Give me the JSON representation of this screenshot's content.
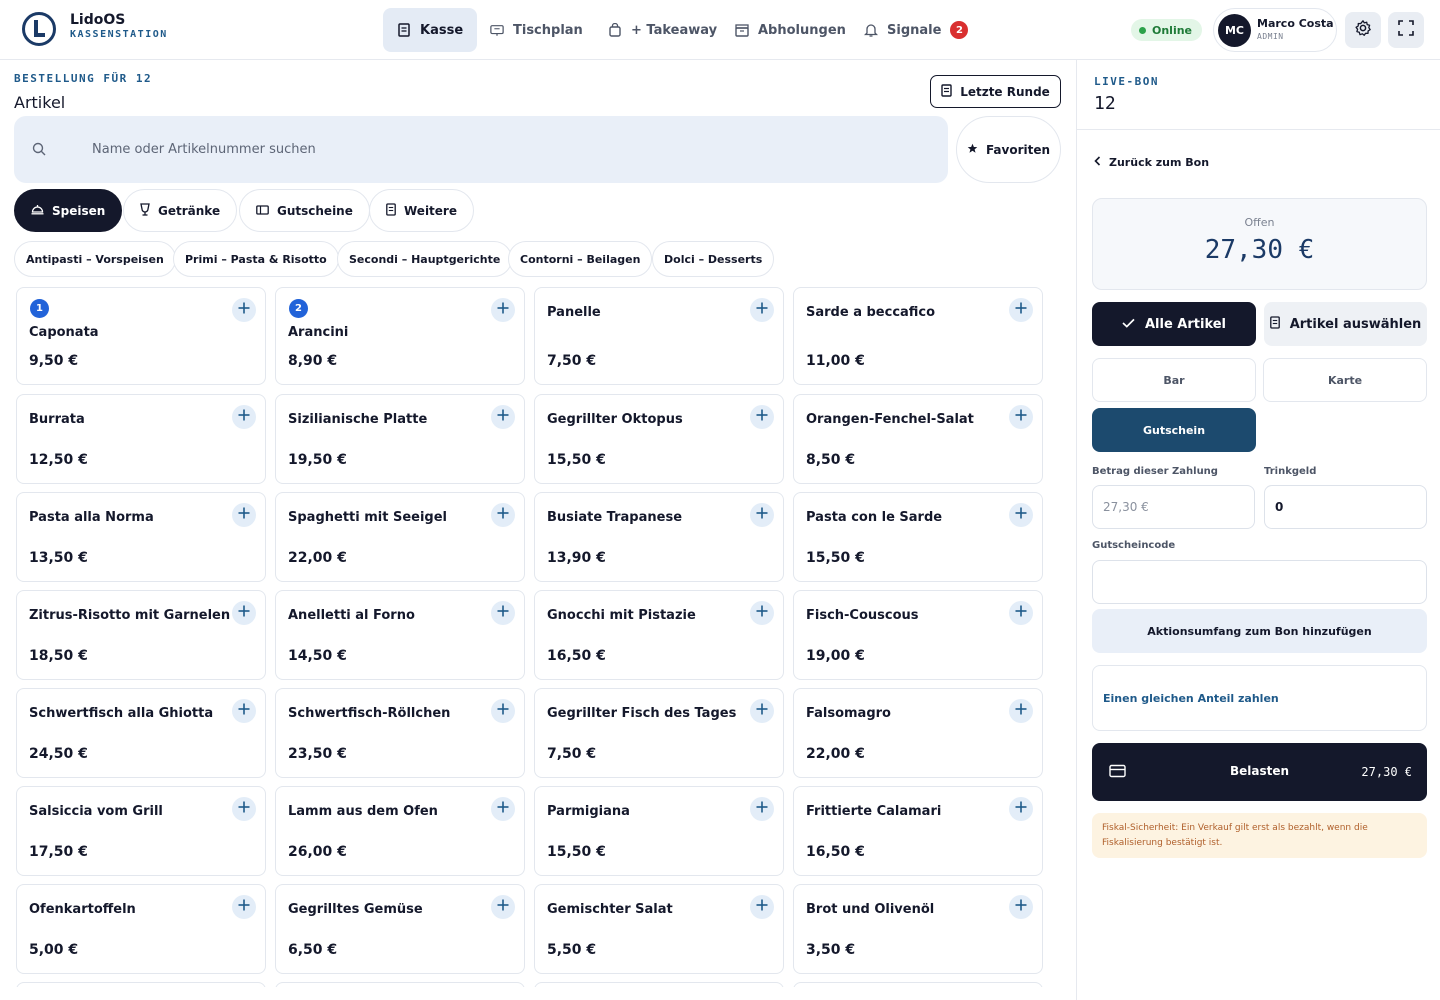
{
  "brand": {
    "name": "LidoOS",
    "subtitle": "KASSENSTATION"
  },
  "nav": [
    {
      "label": "Kasse",
      "icon": "receipt-icon",
      "active": true
    },
    {
      "label": "Tischplan",
      "icon": "table-icon"
    },
    {
      "label": "+ Takeaway",
      "icon": "bag-icon"
    },
    {
      "label": "Abholungen",
      "icon": "box-icon"
    },
    {
      "label": "Signale",
      "icon": "bell-icon",
      "badge": "2"
    }
  ],
  "status": {
    "label": "Online"
  },
  "user": {
    "initials": "MC",
    "name": "Marco Costa",
    "role": "ADMIN"
  },
  "order": {
    "label": "BESTELLUNG FÜR 12",
    "section": "Artikel",
    "last_round": "Letzte Runde",
    "search_placeholder": "Name oder Artikelnummer suchen",
    "favorites": "Favoriten"
  },
  "categories": [
    {
      "label": "Speisen",
      "icon": "dish-icon",
      "active": true
    },
    {
      "label": "Getränke",
      "icon": "glass-icon"
    },
    {
      "label": "Gutscheine",
      "icon": "ticket-icon"
    },
    {
      "label": "Weitere",
      "icon": "receipt-icon"
    }
  ],
  "subcategories": [
    "Antipasti – Vorspeisen",
    "Primi – Pasta & Risotto",
    "Secondi – Hauptgerichte",
    "Contorni – Beilagen",
    "Dolci – Desserts"
  ],
  "products": [
    {
      "name": "Caponata",
      "price": "9,50 €",
      "count": "1"
    },
    {
      "name": "Arancini",
      "price": "8,90 €",
      "count": "2"
    },
    {
      "name": "Panelle",
      "price": "7,50 €"
    },
    {
      "name": "Sarde a beccafico",
      "price": "11,00 €"
    },
    {
      "name": "Burrata",
      "price": "12,50 €"
    },
    {
      "name": "Sizilianische Platte",
      "price": "19,50 €"
    },
    {
      "name": "Gegrillter Oktopus",
      "price": "15,50 €"
    },
    {
      "name": "Orangen-Fenchel-Salat",
      "price": "8,50 €"
    },
    {
      "name": "Pasta alla Norma",
      "price": "13,50 €"
    },
    {
      "name": "Spaghetti mit Seeigel",
      "price": "22,00 €"
    },
    {
      "name": "Busiate Trapanese",
      "price": "13,90 €"
    },
    {
      "name": "Pasta con le Sarde",
      "price": "15,50 €"
    },
    {
      "name": "Zitrus-Risotto mit Garnelen",
      "price": "18,50 €"
    },
    {
      "name": "Anelletti al Forno",
      "price": "14,50 €"
    },
    {
      "name": "Gnocchi mit Pistazie",
      "price": "16,50 €"
    },
    {
      "name": "Fisch-Couscous",
      "price": "19,00 €"
    },
    {
      "name": "Schwertfisch alla Ghiotta",
      "price": "24,50 €"
    },
    {
      "name": "Schwertfisch-Röllchen",
      "price": "23,50 €"
    },
    {
      "name": "Gegrillter Fisch des Tages",
      "price": "7,50 €"
    },
    {
      "name": "Falsomagro",
      "price": "22,00 €"
    },
    {
      "name": "Salsiccia vom Grill",
      "price": "17,50 €"
    },
    {
      "name": "Lamm aus dem Ofen",
      "price": "26,00 €"
    },
    {
      "name": "Parmigiana",
      "price": "15,50 €"
    },
    {
      "name": "Frittierte Calamari",
      "price": "16,50 €"
    },
    {
      "name": "Ofenkartoffeln",
      "price": "5,00 €"
    },
    {
      "name": "Gegrilltes Gemüse",
      "price": "6,50 €"
    },
    {
      "name": "Gemischter Salat",
      "price": "5,50 €"
    },
    {
      "name": "Brot und Olivenöl",
      "price": "3,50 €"
    }
  ],
  "bon": {
    "label": "LIVE-BON",
    "number": "12",
    "back": "Zurück zum Bon",
    "open_label": "Offen",
    "open_amount": "27,30 €",
    "all_items": "Alle Artikel",
    "select_items": "Artikel auswählen",
    "methods": [
      {
        "label": "Bar"
      },
      {
        "label": "Karte"
      },
      {
        "label": "Gutschein",
        "active": true
      }
    ],
    "amount_label": "Betrag dieser Zahlung",
    "amount_placeholder": "27,30 €",
    "tip_label": "Trinkgeld",
    "tip_value": "0",
    "voucher_label": "Gutscheincode",
    "voucher_value": "",
    "promo": "Aktionsumfang zum Bon hinzufügen",
    "split": "Einen gleichen Anteil zahlen",
    "charge_label": "Belasten",
    "charge_amount": "27,30 €",
    "notice": "Fiskal-Sicherheit: Ein Verkauf gilt erst als bezahlt, wenn die Fiskalisierung bestätigt ist."
  },
  "colors": {
    "dark": "#14182b",
    "accent_blue": "#1f5a8a",
    "active_method": "#1c4a6e",
    "badge_red": "#d92f2f",
    "online_green": "#2ca24a",
    "count_blue": "#2263d9"
  }
}
